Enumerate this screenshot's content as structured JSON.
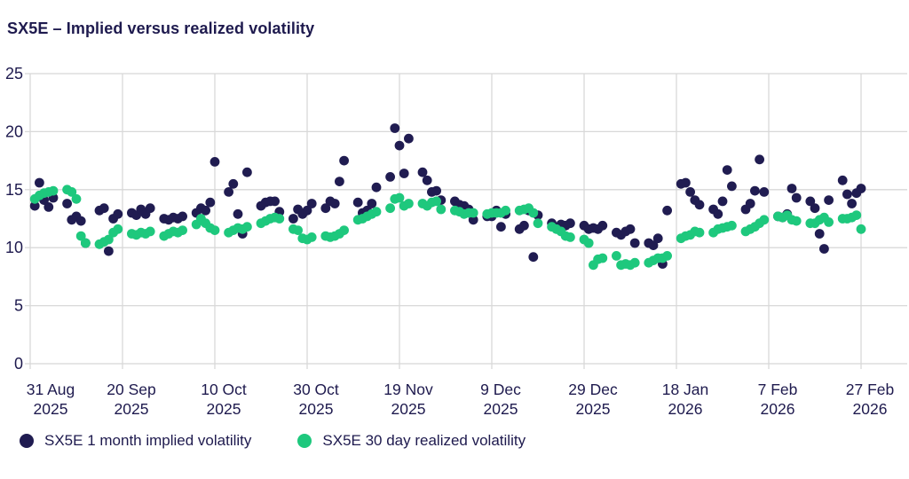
{
  "title": "SX5E – Implied versus realized volatility",
  "colors": {
    "implied": "#201c51",
    "realized": "#1ec87d",
    "text": "#1e1a4e",
    "grid": "#d8d8d8",
    "background": "#ffffff"
  },
  "legend": [
    {
      "label": "SX5E 1 month implied volatility",
      "series": "implied"
    },
    {
      "label": "SX5E 30 day realized volatility",
      "series": "realized"
    }
  ],
  "chart_data": {
    "type": "scatter",
    "title": "SX5E – Implied versus realized volatility",
    "xlabel": "",
    "ylabel": "",
    "ylim": [
      0,
      25
    ],
    "y_ticks": [
      0,
      5,
      10,
      15,
      20,
      25
    ],
    "grid": true,
    "legend_position": "bottom",
    "x_start_date": "2025-08-31",
    "x_end_date": "2026-02-27",
    "x_ticks": [
      {
        "date": "2025-08-31",
        "line1": "31 Aug",
        "line2": "2025"
      },
      {
        "date": "2025-09-20",
        "line1": "20 Sep",
        "line2": "2025"
      },
      {
        "date": "2025-10-10",
        "line1": "10 Oct",
        "line2": "2025"
      },
      {
        "date": "2025-10-30",
        "line1": "30 Oct",
        "line2": "2025"
      },
      {
        "date": "2025-11-19",
        "line1": "19 Nov",
        "line2": "2025"
      },
      {
        "date": "2025-12-09",
        "line1": "9 Dec",
        "line2": "2025"
      },
      {
        "date": "2025-12-29",
        "line1": "29 Dec",
        "line2": "2025"
      },
      {
        "date": "2026-01-18",
        "line1": "18 Jan",
        "line2": "2026"
      },
      {
        "date": "2026-02-07",
        "line1": "7 Feb",
        "line2": "2026"
      },
      {
        "date": "2026-02-27",
        "line1": "27 Feb",
        "line2": "2026"
      }
    ],
    "dates": [
      "2025-09-01",
      "2025-09-02",
      "2025-09-03",
      "2025-09-04",
      "2025-09-05",
      "2025-09-08",
      "2025-09-09",
      "2025-09-10",
      "2025-09-11",
      "2025-09-12",
      "2025-09-15",
      "2025-09-16",
      "2025-09-17",
      "2025-09-18",
      "2025-09-19",
      "2025-09-22",
      "2025-09-23",
      "2025-09-24",
      "2025-09-25",
      "2025-09-26",
      "2025-09-29",
      "2025-09-30",
      "2025-10-01",
      "2025-10-02",
      "2025-10-03",
      "2025-10-06",
      "2025-10-07",
      "2025-10-08",
      "2025-10-09",
      "2025-10-10",
      "2025-10-13",
      "2025-10-14",
      "2025-10-15",
      "2025-10-16",
      "2025-10-17",
      "2025-10-20",
      "2025-10-21",
      "2025-10-22",
      "2025-10-23",
      "2025-10-24",
      "2025-10-27",
      "2025-10-28",
      "2025-10-29",
      "2025-10-30",
      "2025-10-31",
      "2025-11-03",
      "2025-11-04",
      "2025-11-05",
      "2025-11-06",
      "2025-11-07",
      "2025-11-10",
      "2025-11-11",
      "2025-11-12",
      "2025-11-13",
      "2025-11-14",
      "2025-11-17",
      "2025-11-18",
      "2025-11-19",
      "2025-11-20",
      "2025-11-21",
      "2025-11-24",
      "2025-11-25",
      "2025-11-26",
      "2025-11-27",
      "2025-11-28",
      "2025-12-01",
      "2025-12-02",
      "2025-12-03",
      "2025-12-04",
      "2025-12-05",
      "2025-12-08",
      "2025-12-09",
      "2025-12-10",
      "2025-12-11",
      "2025-12-12",
      "2025-12-15",
      "2025-12-16",
      "2025-12-17",
      "2025-12-18",
      "2025-12-19",
      "2025-12-22",
      "2025-12-23",
      "2025-12-24",
      "2025-12-25",
      "2025-12-26",
      "2025-12-29",
      "2025-12-30",
      "2025-12-31",
      "2026-01-01",
      "2026-01-02",
      "2026-01-05",
      "2026-01-06",
      "2026-01-07",
      "2026-01-08",
      "2026-01-09",
      "2026-01-12",
      "2026-01-13",
      "2026-01-14",
      "2026-01-15",
      "2026-01-16",
      "2026-01-19",
      "2026-01-20",
      "2026-01-21",
      "2026-01-22",
      "2026-01-23",
      "2026-01-26",
      "2026-01-27",
      "2026-01-28",
      "2026-01-29",
      "2026-01-30",
      "2026-02-02",
      "2026-02-03",
      "2026-02-04",
      "2026-02-05",
      "2026-02-06",
      "2026-02-09",
      "2026-02-10",
      "2026-02-11",
      "2026-02-12",
      "2026-02-13",
      "2026-02-16",
      "2026-02-17",
      "2026-02-18",
      "2026-02-19",
      "2026-02-20",
      "2026-02-23",
      "2026-02-24",
      "2026-02-25",
      "2026-02-26",
      "2026-02-27"
    ],
    "series": [
      {
        "name": "SX5E 1 month implied volatility",
        "color_key": "implied",
        "values": [
          13.6,
          15.6,
          14.1,
          13.5,
          14.3,
          13.8,
          12.4,
          12.7,
          12.3,
          10.4,
          13.2,
          13.4,
          9.7,
          12.5,
          12.9,
          13.0,
          12.8,
          13.3,
          12.9,
          13.4,
          12.5,
          12.4,
          12.6,
          12.5,
          12.7,
          13.0,
          13.4,
          13.2,
          13.9,
          17.4,
          14.8,
          15.5,
          12.9,
          11.2,
          16.5,
          13.6,
          13.9,
          14.0,
          14.0,
          13.1,
          12.5,
          13.3,
          12.9,
          13.2,
          13.8,
          13.4,
          14.0,
          13.8,
          15.7,
          17.5,
          13.9,
          13.0,
          13.2,
          13.8,
          15.2,
          16.1,
          20.3,
          18.8,
          16.4,
          19.4,
          16.5,
          15.8,
          14.8,
          14.9,
          14.1,
          14.0,
          13.7,
          13.6,
          13.3,
          12.4,
          12.7,
          12.7,
          13.2,
          11.8,
          12.9,
          11.6,
          11.9,
          13.2,
          9.2,
          12.8,
          12.1,
          11.7,
          12.0,
          11.9,
          12.1,
          11.9,
          11.6,
          11.7,
          11.6,
          11.9,
          11.3,
          11.1,
          11.4,
          11.6,
          10.4,
          10.4,
          10.2,
          10.8,
          8.6,
          13.2,
          15.5,
          15.6,
          14.8,
          14.1,
          13.7,
          13.3,
          12.9,
          14.0,
          16.7,
          15.3,
          13.3,
          13.8,
          14.9,
          17.6,
          14.8,
          12.7,
          12.6,
          12.9,
          15.1,
          14.3,
          14.0,
          13.4,
          11.2,
          9.9,
          14.1,
          15.8,
          14.6,
          13.8,
          14.7,
          15.1
        ]
      },
      {
        "name": "SX5E 30 day realized volatility",
        "color_key": "realized",
        "values": [
          14.2,
          14.5,
          14.7,
          14.8,
          14.9,
          15.0,
          14.8,
          14.2,
          11.0,
          10.4,
          10.3,
          10.5,
          10.7,
          11.3,
          11.6,
          11.2,
          11.1,
          11.3,
          11.2,
          11.4,
          11.0,
          11.2,
          11.4,
          11.3,
          11.5,
          12.0,
          12.5,
          12.1,
          11.7,
          11.5,
          11.3,
          11.5,
          11.7,
          11.6,
          11.8,
          12.1,
          12.3,
          12.5,
          12.6,
          12.5,
          11.6,
          11.5,
          10.8,
          10.7,
          10.9,
          11.0,
          10.9,
          11.0,
          11.2,
          11.5,
          12.4,
          12.5,
          12.7,
          12.9,
          13.1,
          13.4,
          14.2,
          14.3,
          13.6,
          13.8,
          13.8,
          13.6,
          13.9,
          14.0,
          13.3,
          13.2,
          13.1,
          12.9,
          13.0,
          13.0,
          12.9,
          13.0,
          13.0,
          13.0,
          13.2,
          13.2,
          13.3,
          13.4,
          13.0,
          12.1,
          11.8,
          11.6,
          11.4,
          11.0,
          10.9,
          10.7,
          10.4,
          8.5,
          9.0,
          9.1,
          9.3,
          8.5,
          8.6,
          8.5,
          8.7,
          8.7,
          8.9,
          9.1,
          9.1,
          9.3,
          10.8,
          11.0,
          11.1,
          11.4,
          11.3,
          11.3,
          11.6,
          11.7,
          11.8,
          11.9,
          11.4,
          11.6,
          11.8,
          12.1,
          12.4,
          12.7,
          12.6,
          12.8,
          12.4,
          12.3,
          12.1,
          12.1,
          12.4,
          12.6,
          12.2,
          12.5,
          12.5,
          12.6,
          12.8,
          11.6
        ]
      }
    ]
  }
}
